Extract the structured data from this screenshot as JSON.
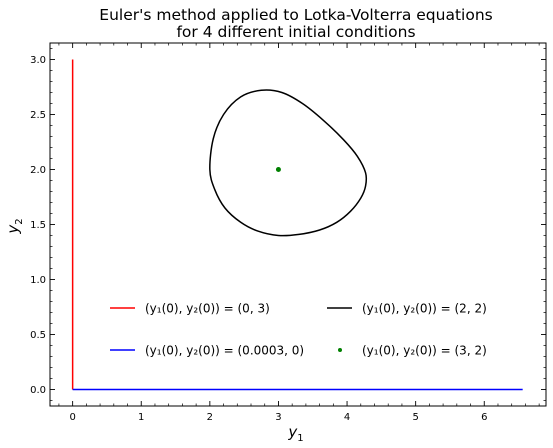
{
  "chart_data": {
    "type": "line",
    "title": [
      "Euler's method applied to Lotka-Volterra equations",
      "for 4 different initial conditions"
    ],
    "xlabel": {
      "base": "y",
      "sub": "1"
    },
    "ylabel": {
      "base": "y",
      "sub": "2"
    },
    "xlim": [
      -0.33,
      6.9
    ],
    "ylim": [
      -0.15,
      3.15
    ],
    "xticks": [
      0,
      1,
      2,
      3,
      4,
      5,
      6
    ],
    "yticks": [
      0.0,
      0.5,
      1.0,
      1.5,
      2.0,
      2.5,
      3.0
    ],
    "ytick_labels": [
      "0.0",
      "0.5",
      "1.0",
      "1.5",
      "2.0",
      "2.5",
      "3.0"
    ],
    "grid": false,
    "legend_position": "lower-center",
    "series": [
      {
        "label": "(y1(0), y2(0)) = (0, 3)",
        "legend_text": "(y₁(0), y₂(0)) = (0, 3)",
        "color": "#ff0000",
        "style": "line",
        "x": [
          0,
          0
        ],
        "y": [
          0,
          3.0
        ]
      },
      {
        "label": "(y1(0), y2(0)) = (0.0003, 0)",
        "legend_text": "(y₁(0), y₂(0)) = (0.0003, 0)",
        "color": "#0000ff",
        "style": "line",
        "x": [
          0.0003,
          6.56
        ],
        "y": [
          0,
          0
        ]
      },
      {
        "label": "(y1(0), y2(0)) = (2, 2)",
        "legend_text": "(y₁(0), y₂(0)) = (2, 2)",
        "color": "#000000",
        "style": "line",
        "x": [
          2.0,
          2.05,
          2.2,
          2.45,
          2.75,
          3.05,
          3.35,
          3.65,
          3.95,
          4.15,
          4.27,
          4.27,
          4.2,
          4.05,
          3.85,
          3.6,
          3.3,
          3.0,
          2.7,
          2.45,
          2.22,
          2.07,
          2.0
        ],
        "y": [
          2.0,
          2.28,
          2.5,
          2.66,
          2.72,
          2.7,
          2.6,
          2.45,
          2.27,
          2.12,
          1.97,
          1.85,
          1.74,
          1.62,
          1.52,
          1.45,
          1.41,
          1.4,
          1.44,
          1.52,
          1.65,
          1.82,
          2.0
        ]
      },
      {
        "label": "(y1(0), y2(0)) = (3, 2)",
        "legend_text": "(y₁(0), y₂(0)) = (3, 2)",
        "color": "#008000",
        "style": "point",
        "x": [
          3
        ],
        "y": [
          2
        ]
      }
    ]
  }
}
